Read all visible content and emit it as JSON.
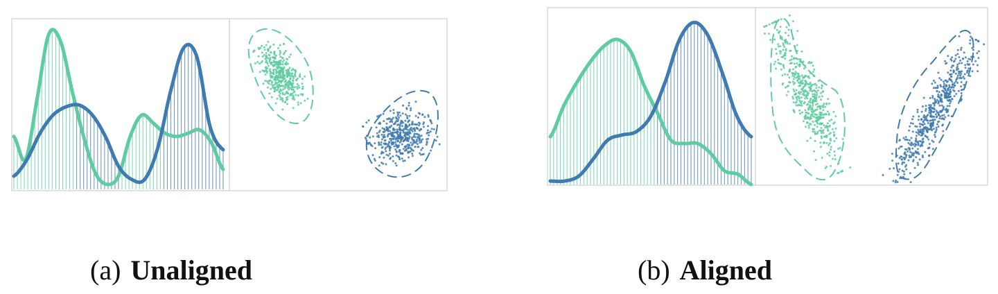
{
  "colors": {
    "green": "#5ecba1",
    "blue": "#3f7bb0",
    "frame": "#cfcfcf"
  },
  "panels": [
    {
      "id": "a",
      "tag": "(a)",
      "label": "Unaligned",
      "histogram": {
        "green_curve": [
          0.32,
          0.18,
          0.55,
          0.94,
          0.9,
          0.6,
          0.32,
          0.1,
          0.03,
          0.08,
          0.32,
          0.45,
          0.4,
          0.34,
          0.32,
          0.34,
          0.36,
          0.28,
          0.12
        ],
        "blue_curve": [
          0.08,
          0.18,
          0.34,
          0.45,
          0.5,
          0.51,
          0.45,
          0.32,
          0.14,
          0.06,
          0.06,
          0.25,
          0.6,
          0.86,
          0.8,
          0.38,
          0.24
        ]
      },
      "clusters": [
        {
          "series": "green",
          "count": 420
        },
        {
          "series": "blue",
          "count": 460
        }
      ]
    },
    {
      "id": "b",
      "tag": "(b)",
      "label": "Aligned",
      "histogram": {
        "green_curve": [
          0.28,
          0.46,
          0.6,
          0.72,
          0.81,
          0.85,
          0.78,
          0.58,
          0.42,
          0.26,
          0.24,
          0.24,
          0.18,
          0.08,
          0.06,
          0.0
        ],
        "blue_curve": [
          0.02,
          0.02,
          0.05,
          0.15,
          0.26,
          0.29,
          0.31,
          0.4,
          0.6,
          0.85,
          0.95,
          0.87,
          0.65,
          0.4,
          0.28
        ]
      },
      "clusters": [
        {
          "series": "green",
          "count": 520
        },
        {
          "series": "blue",
          "count": 560
        }
      ]
    }
  ]
}
